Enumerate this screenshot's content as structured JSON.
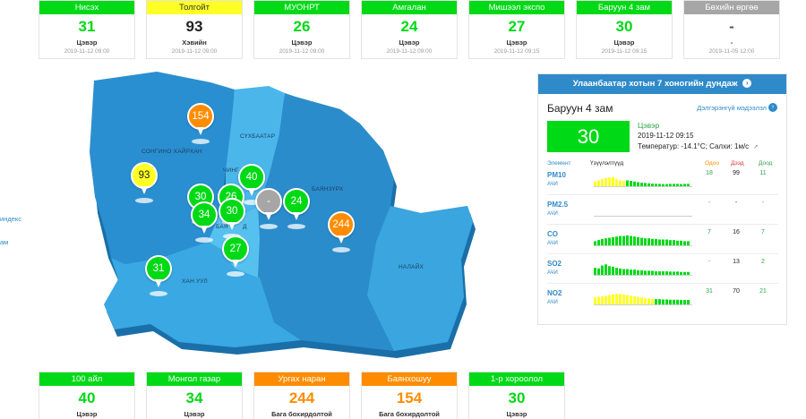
{
  "colors": {
    "good": "#00d916",
    "moderate": "#ffff26",
    "unhealthy_sensitive": "#ff8c00",
    "no_data": "#a6a6a6",
    "panel_header": "#2f8ac9",
    "map_dark": "#2286c4",
    "map_mid": "#2f9ad6",
    "map_light": "#49b4e8"
  },
  "top_stations": [
    {
      "name": "Нисэх",
      "value": "31",
      "status": "Цэвэр",
      "date": "2019-11-12 09:00",
      "level": "good"
    },
    {
      "name": "Толгойт",
      "value": "93",
      "status": "Хэвийн",
      "date": "2019-11-12 09:00",
      "level": "moderate"
    },
    {
      "name": "МУОНРТ",
      "value": "26",
      "status": "Цэвэр",
      "date": "2019-11-12 09:00",
      "level": "good"
    },
    {
      "name": "Амгалан",
      "value": "24",
      "status": "Цэвэр",
      "date": "2019-11-12 09:00",
      "level": "good"
    },
    {
      "name": "Мишээл экспо",
      "value": "27",
      "status": "Цэвэр",
      "date": "2019-11-12 09:15",
      "level": "good"
    },
    {
      "name": "Баруун 4 зам",
      "value": "30",
      "status": "Цэвэр",
      "date": "2019-11-12 09:15",
      "level": "good"
    },
    {
      "name": "Бөхийн өргөө",
      "value": "-",
      "status": "-",
      "date": "2019-11-05 12:00",
      "level": "no_data"
    }
  ],
  "bottom_stations": [
    {
      "name": "100 айл",
      "value": "40",
      "status": "Цэвэр",
      "level": "good"
    },
    {
      "name": "Монгол газар",
      "value": "34",
      "status": "Цэвэр",
      "level": "good"
    },
    {
      "name": "Ургах наран",
      "value": "244",
      "status": "Бага бохирдолтой",
      "level": "unhealthy_sensitive"
    },
    {
      "name": "Баянхошуу",
      "value": "154",
      "status": "Бага бохирдолтой",
      "level": "unhealthy_sensitive"
    },
    {
      "name": "1-р хороолол",
      "value": "30",
      "status": "Цэвэр",
      "level": "good"
    }
  ],
  "map_labels": [
    "СОНГИНО ХАЙРХАН",
    "СҮХБААТАР",
    "ЧИНГ",
    "БАЯНЗҮРХ",
    "БАЯ",
    "Д",
    "ХАН УУЛ",
    "НАЛАЙХ"
  ],
  "map_markers": [
    {
      "value": "154",
      "level": "unhealthy_sensitive"
    },
    {
      "value": "93",
      "level": "moderate"
    },
    {
      "value": "40",
      "level": "good"
    },
    {
      "value": "30",
      "level": "good"
    },
    {
      "value": "26",
      "level": "good"
    },
    {
      "value": "-",
      "level": "no_data"
    },
    {
      "value": "24",
      "level": "good"
    },
    {
      "value": "34",
      "level": "good"
    },
    {
      "value": "30",
      "level": "good"
    },
    {
      "value": "244",
      "level": "unhealthy_sensitive"
    },
    {
      "value": "27",
      "level": "good"
    },
    {
      "value": "31",
      "level": "good"
    }
  ],
  "side_links": [
    "индекс",
    "ам"
  ],
  "panel": {
    "header": "Улаанбаатар хотын 7 хоногийн дундаж",
    "header_icon": "chevron-right-circle-icon",
    "station": "Баруун 4 зам",
    "more_link": "Дэлгэрэнгүй мэдээлэл",
    "aqi": "30",
    "status": "Цэвэр",
    "date": "2019-11-12 09:15",
    "weather": "Температур: -14.1°C; Салхи: 1м/с",
    "wind_icon": "wind-arrow-icon",
    "col_element": "Элемент",
    "col_index": "Үзүүлэлтүүд",
    "col_now": "Одоо",
    "col_max": "Дээд",
    "col_min": "Доод",
    "elements": [
      {
        "name": "PM10",
        "unit": "АЧИ",
        "now": "18",
        "max": "99",
        "min": "11",
        "bars": [
          {
            "color": "yellow",
            "h": [
              0.4,
              0.5,
              0.6,
              0.7,
              0.75,
              0.8,
              0.6,
              0.5,
              0.45
            ]
          },
          {
            "color": "green",
            "h": [
              0.5,
              0.45,
              0.4,
              0.35,
              0.3,
              0.28,
              0.25,
              0.22,
              0.2,
              0.2,
              0.18,
              0.18,
              0.2,
              0.2,
              0.2,
              0.18,
              0.2,
              0.2
            ]
          }
        ]
      },
      {
        "name": "PM2.5",
        "unit": "АЧИ",
        "now": "-",
        "max": "-",
        "min": "-",
        "bars": []
      },
      {
        "name": "CO",
        "unit": "АЧИ",
        "now": "7",
        "max": "16",
        "min": "7",
        "bars": [
          {
            "color": "green",
            "h": [
              0.35,
              0.45,
              0.55,
              0.6,
              0.65,
              0.7,
              0.75,
              0.8,
              0.8,
              0.85,
              0.8,
              0.75,
              0.7,
              0.65,
              0.6,
              0.6,
              0.55,
              0.55,
              0.5,
              0.5,
              0.5,
              0.45,
              0.45,
              0.4,
              0.4,
              0.35,
              0.35
            ]
          }
        ]
      },
      {
        "name": "SO2",
        "unit": "АЧИ",
        "now": "-",
        "max": "13",
        "min": "2",
        "bars": [
          {
            "color": "green",
            "h": [
              0.6,
              0.55,
              0.8,
              0.9,
              0.75,
              0.7,
              0.6,
              0.55,
              0.5,
              0.5,
              0.45,
              0.45,
              0.4,
              0.4,
              0.35,
              0.35,
              0.35,
              0.3,
              0.3,
              0.3,
              0.3,
              0.28,
              0.28,
              0.28,
              0.25,
              0.25,
              0.25
            ]
          }
        ]
      },
      {
        "name": "NO2",
        "unit": "АЧИ",
        "now": "31",
        "max": "70",
        "min": "21",
        "bars": [
          {
            "color": "yellow",
            "h": [
              0.6,
              0.65,
              0.7,
              0.75,
              0.8,
              0.85,
              0.9,
              0.9,
              0.85,
              0.8,
              0.75,
              0.7,
              0.65,
              0.6,
              0.55,
              0.5,
              0.48
            ]
          },
          {
            "color": "green",
            "h": [
              0.45,
              0.45,
              0.42,
              0.42,
              0.4,
              0.4,
              0.4,
              0.38,
              0.38,
              0.38
            ]
          }
        ]
      }
    ]
  }
}
